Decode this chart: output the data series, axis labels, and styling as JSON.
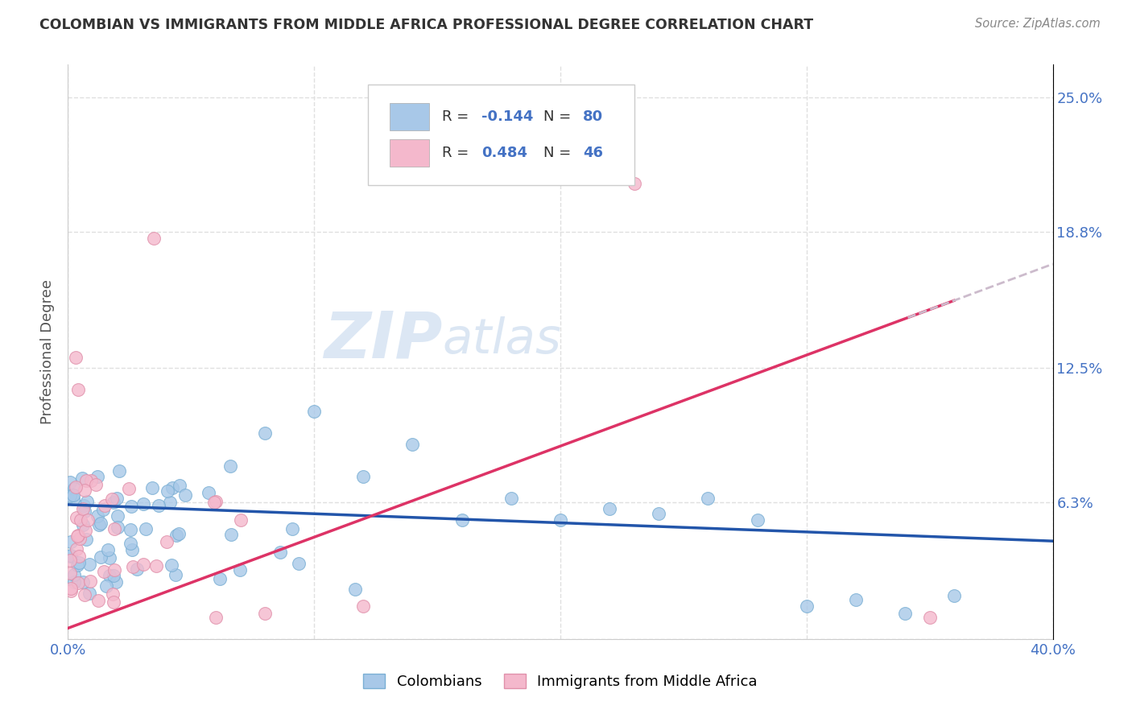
{
  "title": "COLOMBIAN VS IMMIGRANTS FROM MIDDLE AFRICA PROFESSIONAL DEGREE CORRELATION CHART",
  "source": "Source: ZipAtlas.com",
  "ylabel": "Professional Degree",
  "xlim": [
    0.0,
    0.4
  ],
  "ylim": [
    0.0,
    0.265
  ],
  "xticks": [
    0.0,
    0.1,
    0.2,
    0.3,
    0.4
  ],
  "xticklabels": [
    "0.0%",
    "",
    "",
    "",
    "40.0%"
  ],
  "ytick_positions": [
    0.0,
    0.063,
    0.125,
    0.188,
    0.25
  ],
  "ytick_right_labels": [
    "",
    "6.3%",
    "12.5%",
    "18.8%",
    "25.0%"
  ],
  "series1_label": "Colombians",
  "series1_color": "#a8c8e8",
  "series1_edge": "#7aafd4",
  "series1_R": -0.144,
  "series1_N": 80,
  "series2_label": "Immigrants from Middle Africa",
  "series2_color": "#f4b8cc",
  "series2_edge": "#e090aa",
  "series2_R": 0.484,
  "series2_N": 46,
  "watermark": "ZIPatlas",
  "background_color": "#ffffff",
  "grid_color": "#e0e0e0",
  "line1_color": "#2255aa",
  "line2_color": "#dd3366",
  "line2_dash_color": "#ccbbcc",
  "col_intercept": 0.062,
  "col_slope": -0.042,
  "imm_intercept": 0.005,
  "imm_slope": 0.42
}
